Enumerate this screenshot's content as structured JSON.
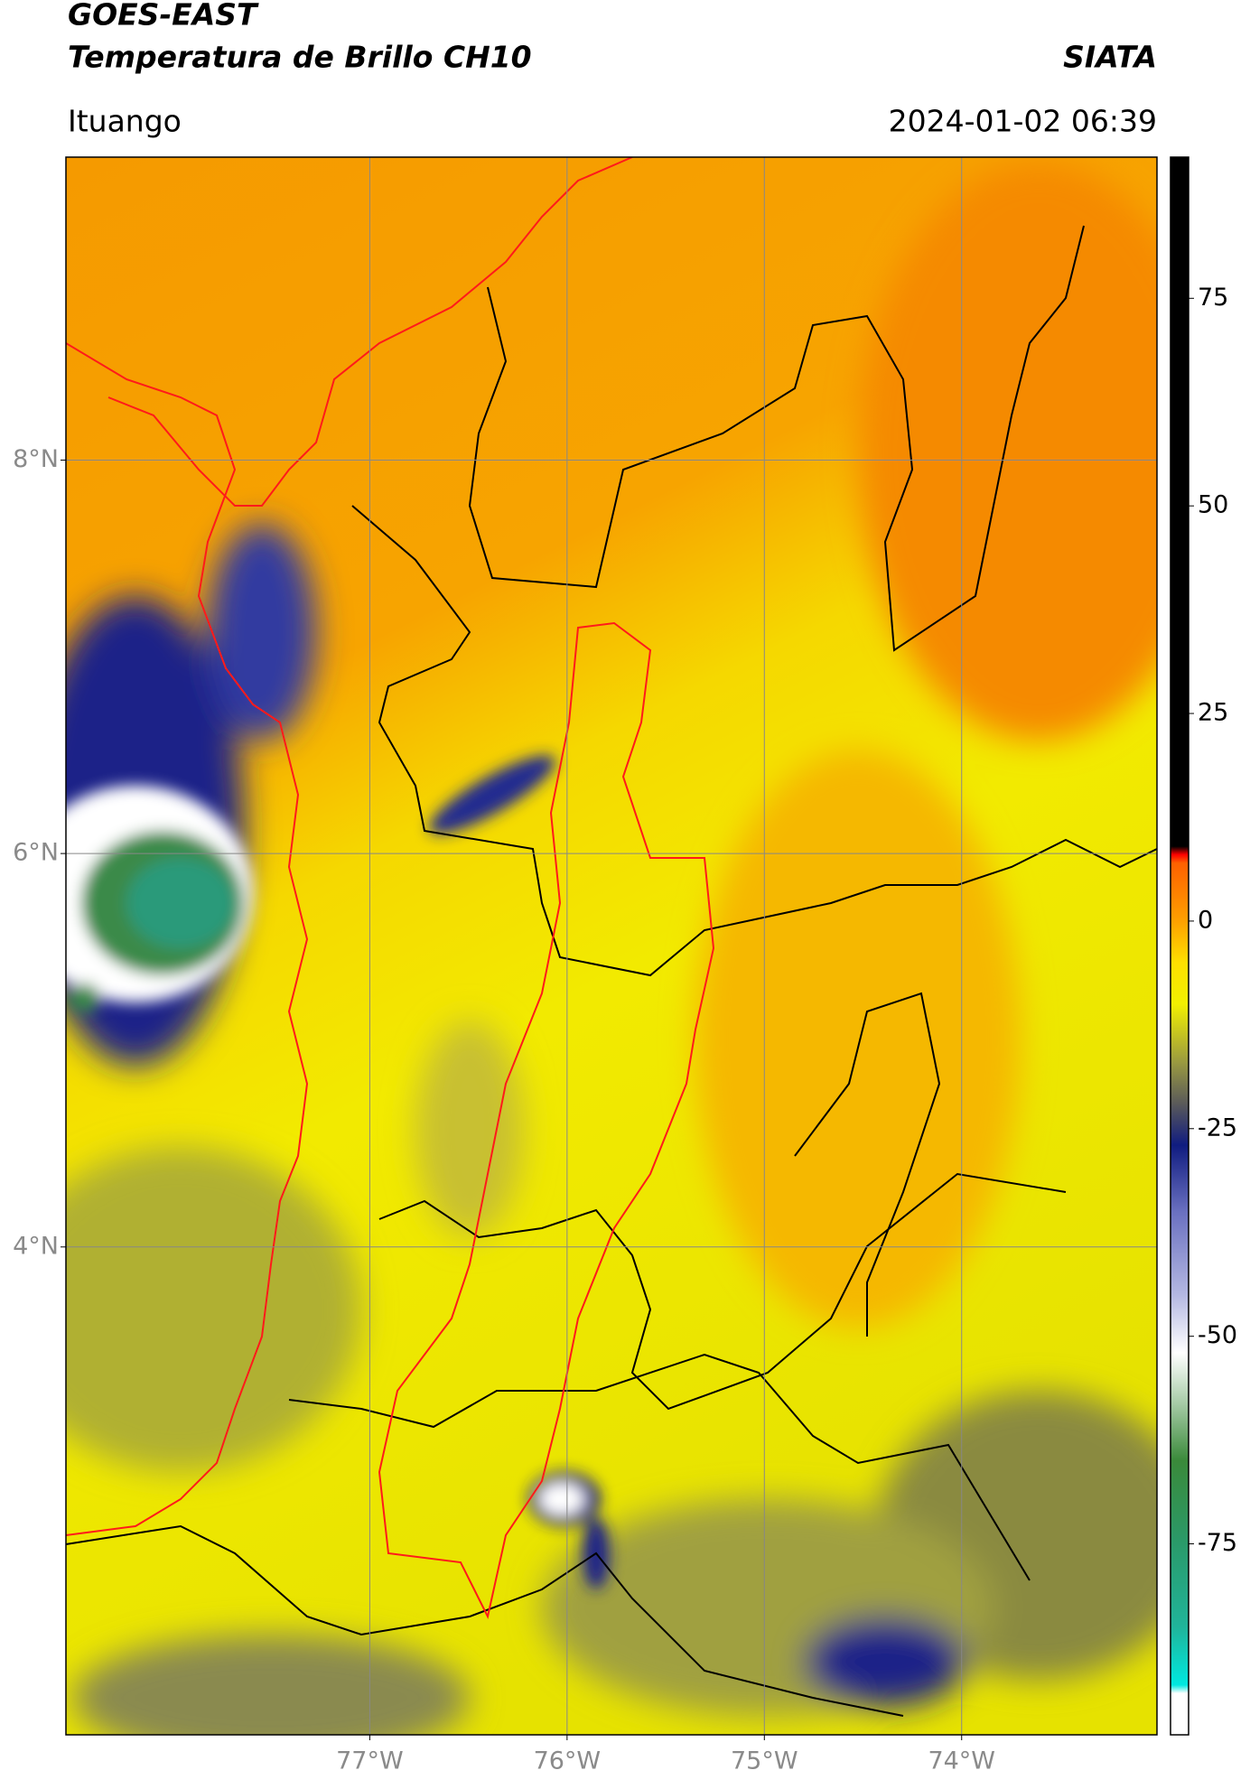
{
  "header": {
    "title": "GOES-EAST",
    "subtitle": "Temperatura de Brillo CH10",
    "source": "SIATA",
    "location": "Ituango",
    "datetime": "2024-01-02 06:39"
  },
  "map": {
    "xlim": [
      -78.54,
      -73.01
    ],
    "ylim": [
      1.52,
      9.54
    ],
    "xticks": [
      {
        "value": -77,
        "label": "77°W"
      },
      {
        "value": -76,
        "label": "76°W"
      },
      {
        "value": -75,
        "label": "75°W"
      },
      {
        "value": -74,
        "label": "74°W"
      }
    ],
    "yticks": [
      {
        "value": 8,
        "label": "8°N"
      },
      {
        "value": 6,
        "label": "6°N"
      },
      {
        "value": 4,
        "label": "4°N"
      }
    ],
    "grid": true
  },
  "colorbar": {
    "clim": [
      -98,
      92
    ],
    "ticks": [
      75,
      50,
      25,
      0,
      -25,
      -50,
      -75
    ],
    "colormap": [
      {
        "value": -98,
        "color": "#ffffff"
      },
      {
        "value": -93,
        "color": "#ffffff"
      },
      {
        "value": -92,
        "color": "#00e8e0"
      },
      {
        "value": -85,
        "color": "#20b49a"
      },
      {
        "value": -75,
        "color": "#2a9a6a"
      },
      {
        "value": -65,
        "color": "#3a8a3a"
      },
      {
        "value": -58,
        "color": "#a8cca8"
      },
      {
        "value": -52,
        "color": "#ffffff"
      },
      {
        "value": -45,
        "color": "#b4b8e2"
      },
      {
        "value": -35,
        "color": "#6a70c0"
      },
      {
        "value": -27,
        "color": "#101c80"
      },
      {
        "value": -22,
        "color": "#5a5a5a"
      },
      {
        "value": -17,
        "color": "#9a9a40"
      },
      {
        "value": -10,
        "color": "#f2f000"
      },
      {
        "value": -5,
        "color": "#ffe000"
      },
      {
        "value": 0,
        "color": "#ffa000"
      },
      {
        "value": 7,
        "color": "#ff6000"
      },
      {
        "value": 8,
        "color": "#ff0000"
      },
      {
        "value": 9,
        "color": "#000000"
      },
      {
        "value": 92,
        "color": "#000000"
      }
    ]
  }
}
